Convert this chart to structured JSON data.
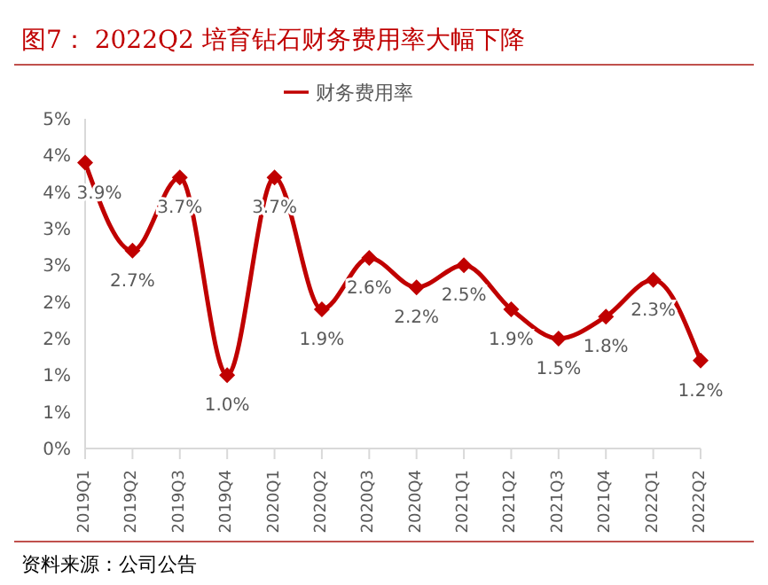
{
  "chart_data": {
    "type": "line",
    "title": "图7：  2022Q2 培育钻石财务费用率大幅下降",
    "categories": [
      "2019Q1",
      "2019Q2",
      "2019Q3",
      "2019Q4",
      "2020Q1",
      "2020Q2",
      "2020Q3",
      "2020Q4",
      "2021Q1",
      "2021Q2",
      "2021Q3",
      "2021Q4",
      "2022Q1",
      "2022Q2"
    ],
    "series": [
      {
        "name": "财务费用率",
        "color": "#c00000",
        "values": [
          3.9,
          2.7,
          3.7,
          1.0,
          3.7,
          1.9,
          2.6,
          2.2,
          2.5,
          1.9,
          1.5,
          1.8,
          2.3,
          1.2
        ]
      }
    ],
    "value_labels": [
      "3.9%",
      "2.7%",
      "3.7%",
      "1.0%",
      "3.7%",
      "1.9%",
      "2.6%",
      "2.2%",
      "2.5%",
      "1.9%",
      "1.5%",
      "1.8%",
      "2.3%",
      "1.2%"
    ],
    "ylim": [
      0,
      4.5
    ],
    "yticks": [
      {
        "value": 0,
        "label": "0%"
      },
      {
        "value": 0.5,
        "label": "1%"
      },
      {
        "value": 1,
        "label": "1%"
      },
      {
        "value": 1.5,
        "label": "2%"
      },
      {
        "value": 2,
        "label": "2%"
      },
      {
        "value": 2.5,
        "label": "3%"
      },
      {
        "value": 3,
        "label": "3%"
      },
      {
        "value": 3.5,
        "label": "4%"
      },
      {
        "value": 4,
        "label": "4%"
      },
      {
        "value": 4.5,
        "label": "5%"
      }
    ],
    "grid": false,
    "legend": "top",
    "marker": "diamond",
    "line_style": "solid",
    "annotations": [
      "资料来源：公司公告"
    ]
  }
}
